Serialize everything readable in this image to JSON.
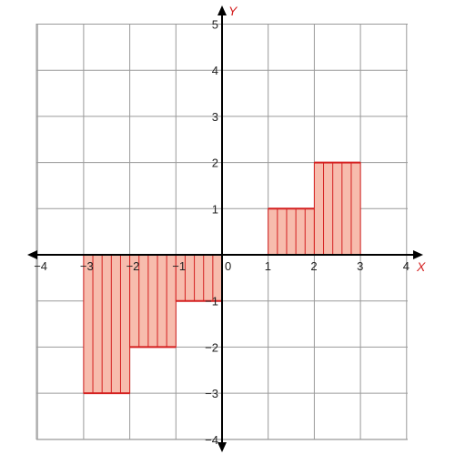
{
  "chart_data": {
    "type": "bar",
    "title": "",
    "xlabel": "X",
    "ylabel": "Y",
    "xlim": [
      -4,
      4
    ],
    "ylim": [
      -4,
      5
    ],
    "grid": true,
    "x_ticks": [
      {
        "value": -4,
        "label": "−4"
      },
      {
        "value": -3,
        "label": "−3"
      },
      {
        "value": -2,
        "label": "−2"
      },
      {
        "value": -1,
        "label": "−1"
      },
      {
        "value": 0,
        "label": "0"
      },
      {
        "value": 1,
        "label": "1"
      },
      {
        "value": 2,
        "label": "2"
      },
      {
        "value": 3,
        "label": "3"
      },
      {
        "value": 4,
        "label": "4"
      }
    ],
    "y_ticks": [
      {
        "value": -4,
        "label": "−4"
      },
      {
        "value": -3,
        "label": "−3"
      },
      {
        "value": -2,
        "label": "−2"
      },
      {
        "value": -1,
        "label": "−1"
      },
      {
        "value": 1,
        "label": "1"
      },
      {
        "value": 2,
        "label": "2"
      },
      {
        "value": 3,
        "label": "3"
      },
      {
        "value": 4,
        "label": "4"
      },
      {
        "value": 5,
        "label": "5"
      }
    ],
    "bars": [
      {
        "x_start": -3,
        "x_end": -2,
        "value": -3
      },
      {
        "x_start": -2,
        "x_end": -1,
        "value": -2
      },
      {
        "x_start": -1,
        "x_end": 0,
        "value": -1
      },
      {
        "x_start": 0,
        "x_end": 1,
        "value": 0
      },
      {
        "x_start": 1,
        "x_end": 2,
        "value": 1
      },
      {
        "x_start": 2,
        "x_end": 3,
        "value": 2
      }
    ],
    "hatch_lines_per_unit": 5,
    "colors": {
      "grid": "#9a9a9a",
      "axis": "#000000",
      "fill": "#f7bcad",
      "stroke": "#d42020",
      "axis_label": "#d42020"
    }
  }
}
